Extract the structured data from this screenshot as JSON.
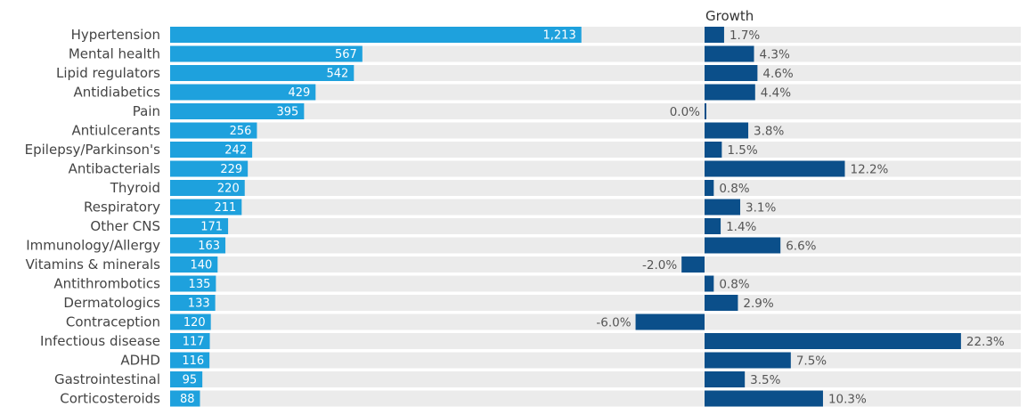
{
  "chart_data": [
    {
      "type": "bar",
      "orientation": "horizontal",
      "categories": [
        "Hypertension",
        "Mental health",
        "Lipid regulators",
        "Antidiabetics",
        "Pain",
        "Antiulcerants",
        "Epilepsy/Parkinson's",
        "Antibacterials",
        "Thyroid",
        "Respiratory",
        "Other CNS",
        "Immunology/Allergy",
        "Vitamins & minerals",
        "Antithrombotics",
        "Dermatologics",
        "Contraception",
        "Infectious disease",
        "ADHD",
        "Gastrointestinal",
        "Corticosteroids"
      ],
      "values": [
        1213,
        567,
        542,
        429,
        395,
        256,
        242,
        229,
        220,
        211,
        171,
        163,
        140,
        135,
        133,
        120,
        117,
        116,
        95,
        88
      ],
      "value_labels": [
        "1,213",
        "567",
        "542",
        "429",
        "395",
        "256",
        "242",
        "229",
        "220",
        "211",
        "171",
        "163",
        "140",
        "135",
        "133",
        "120",
        "117",
        "116",
        "95",
        "88"
      ],
      "xlim": [
        0,
        1550
      ],
      "grid": false,
      "color": "#1ea1dd",
      "track_color": "#ebebeb"
    },
    {
      "type": "bar",
      "orientation": "horizontal",
      "title": "Growth",
      "categories": [
        "Hypertension",
        "Mental health",
        "Lipid regulators",
        "Antidiabetics",
        "Pain",
        "Antiulcerants",
        "Epilepsy/Parkinson's",
        "Antibacterials",
        "Thyroid",
        "Respiratory",
        "Other CNS",
        "Immunology/Allergy",
        "Vitamins & minerals",
        "Antithrombotics",
        "Dermatologics",
        "Contraception",
        "Infectious disease",
        "ADHD",
        "Gastrointestinal",
        "Corticosteroids"
      ],
      "values": [
        1.7,
        4.3,
        4.6,
        4.4,
        0.0,
        3.8,
        1.5,
        12.2,
        0.8,
        3.1,
        1.4,
        6.6,
        -2.0,
        0.8,
        2.9,
        -6.0,
        22.3,
        7.5,
        3.5,
        10.3
      ],
      "value_labels": [
        "1.7%",
        "4.3%",
        "4.6%",
        "4.4%",
        "0.0%",
        "3.8%",
        "1.5%",
        "12.2%",
        "0.8%",
        "3.1%",
        "1.4%",
        "6.6%",
        "-2.0%",
        "0.8%",
        "2.9%",
        "-6.0%",
        "22.3%",
        "7.5%",
        "3.5%",
        "10.3%"
      ],
      "xlim": [
        -6,
        27.5
      ],
      "grid": false,
      "color": "#0b4f8a",
      "track_color": "#ebebeb"
    }
  ]
}
